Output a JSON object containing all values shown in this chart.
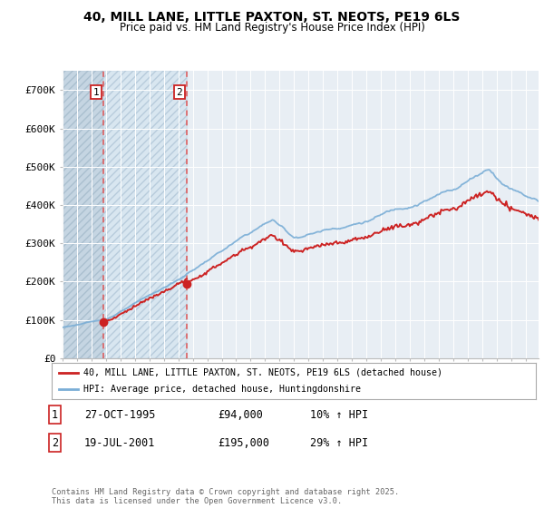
{
  "title1": "40, MILL LANE, LITTLE PAXTON, ST. NEOTS, PE19 6LS",
  "title2": "Price paid vs. HM Land Registry's House Price Index (HPI)",
  "background_color": "#ffffff",
  "plot_bg_color": "#e8eef4",
  "grid_color": "#ffffff",
  "sale1_t": 1995.833,
  "sale1_price": 94000,
  "sale2_t": 2001.583,
  "sale2_price": 195000,
  "legend_line1": "40, MILL LANE, LITTLE PAXTON, ST. NEOTS, PE19 6LS (detached house)",
  "legend_line2": "HPI: Average price, detached house, Huntingdonshire",
  "table_row1": [
    "1",
    "27-OCT-1995",
    "£94,000",
    "10% ↑ HPI"
  ],
  "table_row2": [
    "2",
    "19-JUL-2001",
    "£195,000",
    "29% ↑ HPI"
  ],
  "footer": "Contains HM Land Registry data © Crown copyright and database right 2025.\nThis data is licensed under the Open Government Licence v3.0.",
  "hpi_color": "#7aaed6",
  "price_color": "#cc2222",
  "dashed_line_color": "#e05555",
  "ylim": [
    0,
    750000
  ],
  "yticks": [
    0,
    100000,
    200000,
    300000,
    400000,
    500000,
    600000,
    700000
  ],
  "ytick_labels": [
    "£0",
    "£100K",
    "£200K",
    "£300K",
    "£400K",
    "£500K",
    "£600K",
    "£700K"
  ],
  "xmin": 1993,
  "xmax": 2025.9
}
